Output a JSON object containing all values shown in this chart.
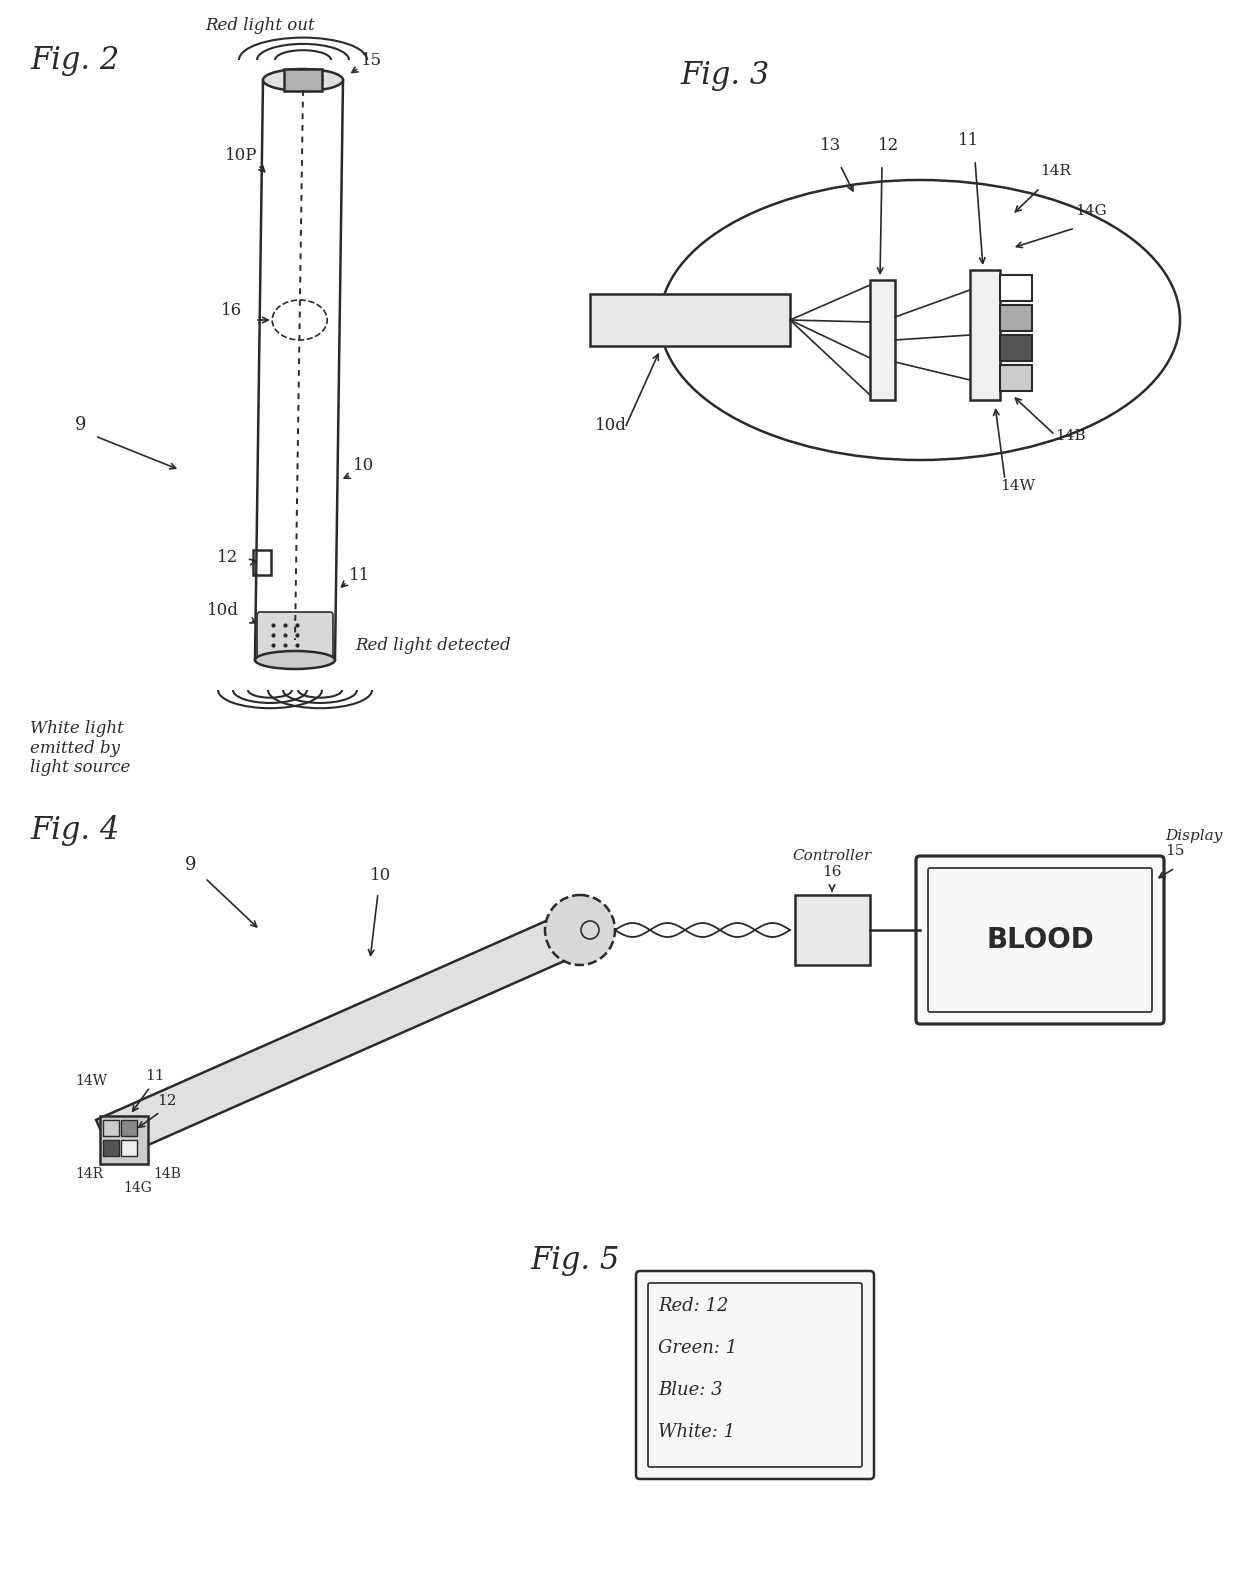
{
  "background_color": "#ffffff",
  "line_color": "#2a2a2a",
  "fig2_label": "Fig. 2",
  "fig3_label": "Fig. 3",
  "fig4_label": "Fig. 4",
  "fig5_label": "Fig. 5",
  "fig2": {
    "red_light_out": "Red light out",
    "label_15": "15",
    "label_10p": "10P",
    "label_16": "16",
    "label_9": "9",
    "label_10": "10",
    "label_12": "12",
    "label_11": "11",
    "label_10d": "10d",
    "red_light_detected": "Red light detected",
    "white_light": "White light\nemitted by\nlight source"
  },
  "fig3": {
    "label_10d": "10d",
    "label_13": "13",
    "label_12": "12",
    "label_11": "11",
    "label_14r": "14R",
    "label_14g": "14G",
    "label_14b": "14B",
    "label_14w": "14W"
  },
  "fig4": {
    "label_9": "9",
    "label_10": "10",
    "label_11": "11",
    "label_12": "12",
    "label_14w": "14W",
    "label_14r": "14R",
    "label_14g": "14G",
    "label_14b": "14B",
    "controller_label": "Controller",
    "label_16": "16",
    "display_label": "Display",
    "label_15": "15",
    "blood_text": "BLOOD"
  },
  "fig5": {
    "red": "Red: 12",
    "green": "Green: 1",
    "blue": "Blue: 3",
    "white": "White: 1"
  }
}
